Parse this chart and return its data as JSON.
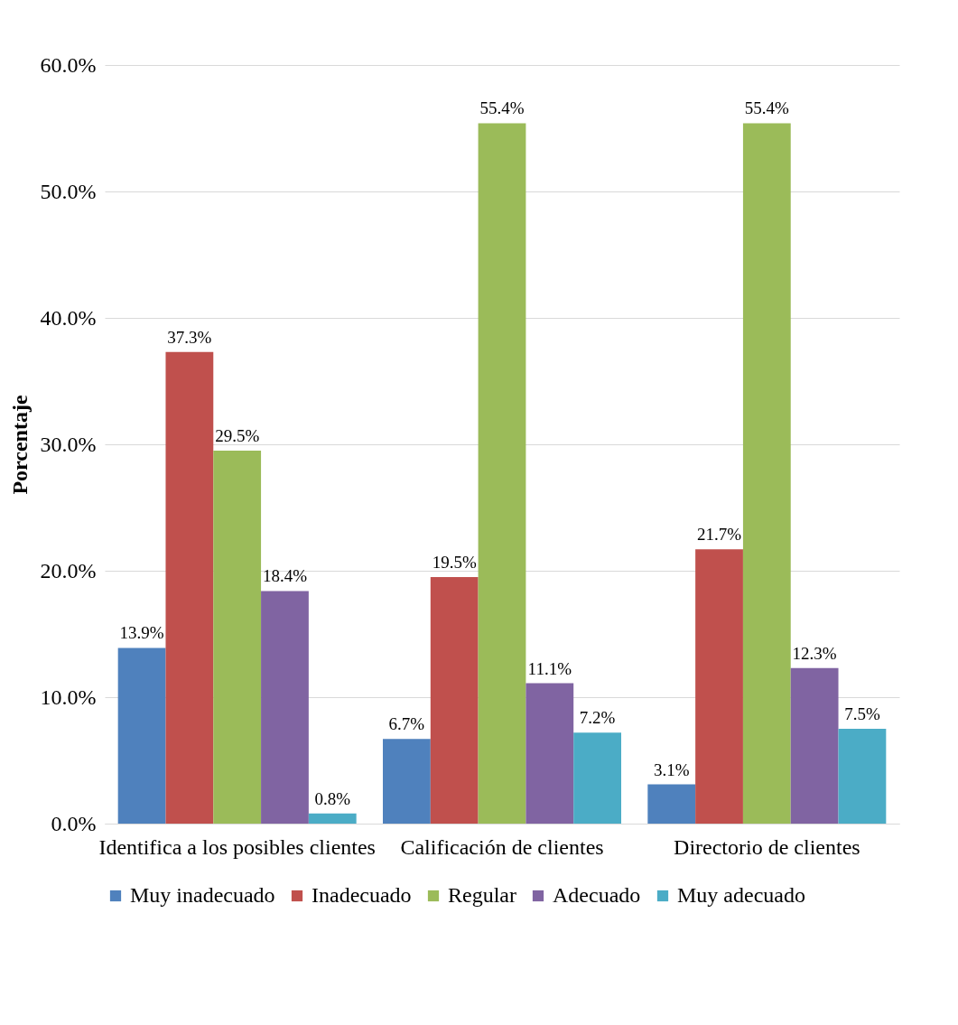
{
  "chart_data": {
    "type": "bar",
    "ylabel": "Porcentaje",
    "categories": [
      "Identifica a los posibles clientes",
      "Calificación de clientes",
      "Directorio de clientes"
    ],
    "series": [
      {
        "name": "Muy inadecuado",
        "color": "#4f81bd",
        "values": [
          13.9,
          6.7,
          3.1
        ],
        "value_labels": [
          "13.9%",
          "6.7%",
          "3.1%"
        ]
      },
      {
        "name": "Inadecuado",
        "color": "#c0504d",
        "values": [
          37.3,
          19.5,
          21.7
        ],
        "value_labels": [
          "37.3%",
          "19.5%",
          "21.7%"
        ]
      },
      {
        "name": "Regular",
        "color": "#9bbb59",
        "values": [
          29.5,
          55.4,
          55.4
        ],
        "value_labels": [
          "29.5%",
          "55.4%",
          "55.4%"
        ]
      },
      {
        "name": "Adecuado",
        "color": "#8064a2",
        "values": [
          18.4,
          11.1,
          12.3
        ],
        "value_labels": [
          "18.4%",
          "11.1%",
          "12.3%"
        ]
      },
      {
        "name": "Muy adecuado",
        "color": "#4bacc6",
        "values": [
          0.8,
          7.2,
          7.5
        ],
        "value_labels": [
          "0.8%",
          "7.2%",
          "7.5%"
        ]
      }
    ],
    "ylim": [
      0,
      60
    ],
    "yticks": [
      {
        "value": 0,
        "label": "0.0%"
      },
      {
        "value": 10,
        "label": "10.0%"
      },
      {
        "value": 20,
        "label": "20.0%"
      },
      {
        "value": 30,
        "label": "30.0%"
      },
      {
        "value": 40,
        "label": "40.0%"
      },
      {
        "value": 50,
        "label": "50.0%"
      },
      {
        "value": 60,
        "label": "60.0%"
      }
    ],
    "grid": "y",
    "legend": "bottom"
  }
}
